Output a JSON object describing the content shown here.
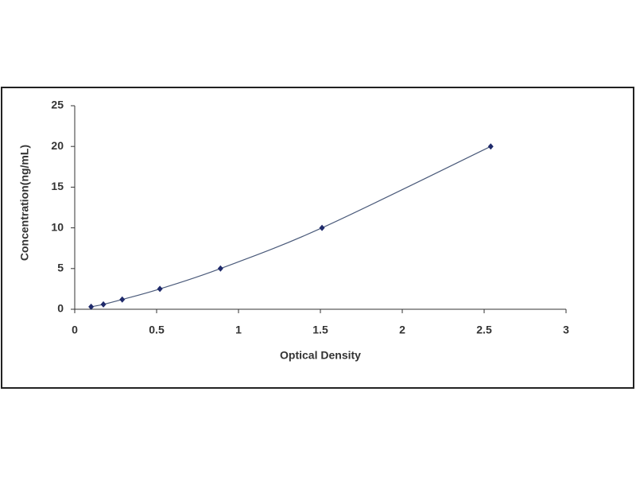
{
  "chart_data": {
    "type": "scatter",
    "x_label": "Optical Density",
    "y_label": "Concentration(ng/mL)",
    "x": [
      0.1,
      0.175,
      0.29,
      0.52,
      0.89,
      1.51,
      2.54
    ],
    "values": [
      0.3,
      0.6,
      1.2,
      2.5,
      5,
      10,
      20
    ],
    "color": "#1f2a6b",
    "line_color": "#4a5a7a",
    "xlim": [
      0,
      3
    ],
    "xticks": [
      0,
      0.5,
      1,
      1.5,
      2,
      2.5,
      3
    ],
    "ylim": [
      0,
      25
    ],
    "yticks": [
      0,
      5,
      10,
      15,
      20,
      25
    ],
    "grid": false
  }
}
